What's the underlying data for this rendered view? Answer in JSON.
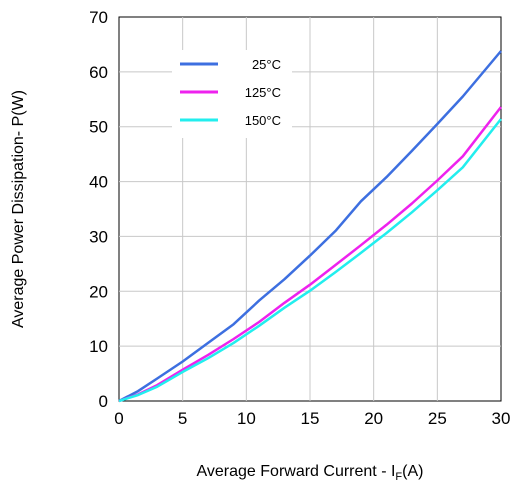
{
  "chart_data": {
    "type": "line",
    "xlabel_main": "Average Forward Current - I",
    "xlabel_sub": "F",
    "xlabel_tail": "(A)",
    "ylabel": "Average Power Dissipation- P(W)",
    "xlim": [
      0,
      30
    ],
    "ylim": [
      0,
      70
    ],
    "xticks": [
      "0",
      "5",
      "10",
      "15",
      "20",
      "25",
      "30"
    ],
    "yticks": [
      "0",
      "10",
      "20",
      "30",
      "40",
      "50",
      "60",
      "70"
    ],
    "grid": true,
    "legend_position": "top-left",
    "series": [
      {
        "name": "25°C",
        "color": "#3d6fe0",
        "x": [
          0,
          1.5,
          3,
          5,
          7,
          9,
          11,
          13,
          15,
          17,
          19,
          21,
          23,
          25,
          27,
          30
        ],
        "y": [
          0,
          1.8,
          4.1,
          7.2,
          10.6,
          14.0,
          18.3,
          22.2,
          26.5,
          31.0,
          36.4,
          40.8,
          45.6,
          50.5,
          55.5,
          63.8
        ]
      },
      {
        "name": "125°C",
        "color": "#ee22ee",
        "x": [
          0,
          1.5,
          3,
          5,
          7,
          9,
          11,
          13,
          15,
          17,
          19,
          21,
          23,
          25,
          27,
          30
        ],
        "y": [
          0,
          1.2,
          2.9,
          5.7,
          8.4,
          11.3,
          14.4,
          17.9,
          21.2,
          24.8,
          28.4,
          32.1,
          36.0,
          40.2,
          44.6,
          53.6
        ]
      },
      {
        "name": "150°C",
        "color": "#22eeee",
        "x": [
          0,
          1.5,
          3,
          5,
          7,
          9,
          11,
          13,
          15,
          17,
          19,
          21,
          23,
          25,
          27,
          30
        ],
        "y": [
          0,
          1.1,
          2.6,
          5.3,
          7.8,
          10.6,
          13.7,
          17.0,
          20.1,
          23.5,
          27.0,
          30.6,
          34.4,
          38.4,
          42.6,
          51.4
        ]
      }
    ]
  }
}
